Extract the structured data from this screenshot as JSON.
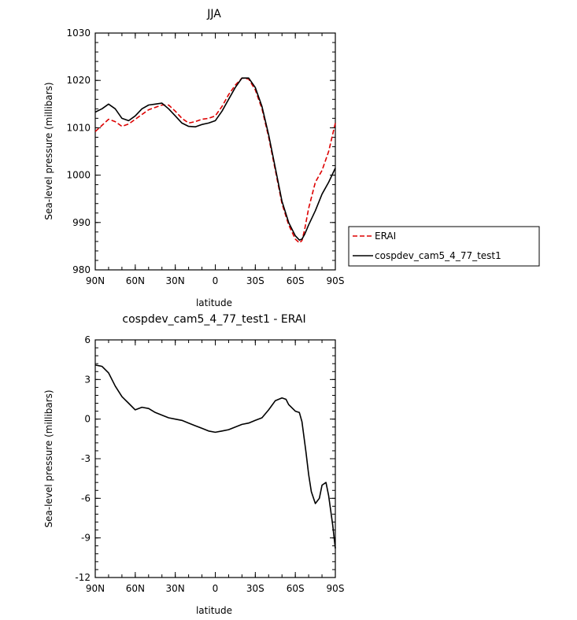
{
  "chart_data": [
    {
      "type": "line",
      "title": "JJA",
      "xlabel": "latitude",
      "ylabel": "Sea-level pressure (millibars)",
      "xlim": [
        90,
        -90
      ],
      "ylim": [
        980,
        1030
      ],
      "x_ticks": [
        90,
        60,
        30,
        0,
        -30,
        -60,
        -90
      ],
      "x_tick_labels": [
        "90N",
        "60N",
        "30N",
        "0",
        "30S",
        "60S",
        "90S"
      ],
      "y_ticks": [
        980,
        990,
        1000,
        1010,
        1020,
        1030
      ],
      "y_tick_labels": [
        "980",
        "990",
        "1000",
        "1010",
        "1020",
        "1030"
      ],
      "legend_position": "right",
      "series": [
        {
          "name": "ERAI",
          "color": "#dd0000",
          "dash": "dashed",
          "x": [
            90,
            85,
            80,
            75,
            70,
            65,
            60,
            55,
            50,
            45,
            40,
            35,
            30,
            25,
            20,
            15,
            10,
            5,
            0,
            -5,
            -10,
            -15,
            -20,
            -25,
            -30,
            -35,
            -40,
            -45,
            -50,
            -55,
            -60,
            -63,
            -65,
            -67,
            -70,
            -75,
            -80,
            -85,
            -90
          ],
          "y": [
            1009.2,
            1010.5,
            1011.8,
            1011.3,
            1010.3,
            1010.8,
            1011.8,
            1012.8,
            1013.8,
            1014.3,
            1014.8,
            1014.8,
            1013.5,
            1012.0,
            1011.0,
            1011.3,
            1011.8,
            1012.0,
            1012.5,
            1014.5,
            1017.0,
            1019.0,
            1020.5,
            1020.3,
            1018.0,
            1014.0,
            1008.0,
            1001.0,
            994.0,
            989.5,
            986.5,
            985.7,
            986.2,
            988.5,
            993.0,
            998.5,
            1001.0,
            1005.0,
            1011.0
          ]
        },
        {
          "name": "cospdev_cam5_4_77_test1",
          "color": "#000000",
          "dash": "solid",
          "x": [
            90,
            85,
            80,
            75,
            70,
            65,
            60,
            55,
            50,
            45,
            40,
            35,
            30,
            25,
            20,
            15,
            10,
            5,
            0,
            -5,
            -10,
            -15,
            -20,
            -25,
            -30,
            -35,
            -40,
            -45,
            -50,
            -55,
            -60,
            -63,
            -65,
            -67,
            -70,
            -75,
            -80,
            -85,
            -90
          ],
          "y": [
            1013.3,
            1014.0,
            1015.0,
            1014.0,
            1012.0,
            1011.5,
            1012.5,
            1014.0,
            1014.8,
            1015.0,
            1015.2,
            1014.0,
            1012.5,
            1011.0,
            1010.3,
            1010.2,
            1010.7,
            1011.0,
            1011.5,
            1013.5,
            1016.0,
            1018.5,
            1020.5,
            1020.5,
            1018.5,
            1014.5,
            1008.5,
            1001.5,
            994.5,
            990.0,
            987.2,
            986.3,
            986.5,
            987.5,
            989.5,
            992.5,
            996.0,
            998.5,
            1001.5
          ]
        }
      ]
    },
    {
      "type": "line",
      "title": "cospdev_cam5_4_77_test1 - ERAI",
      "xlabel": "latitude",
      "ylabel": "Sea-level pressure (millibars)",
      "xlim": [
        90,
        -90
      ],
      "ylim": [
        -12,
        6
      ],
      "x_ticks": [
        90,
        60,
        30,
        0,
        -30,
        -60,
        -90
      ],
      "x_tick_labels": [
        "90N",
        "60N",
        "30N",
        "0",
        "30S",
        "60S",
        "90S"
      ],
      "y_ticks": [
        -12,
        -9,
        -6,
        -3,
        0,
        3,
        6
      ],
      "y_tick_labels": [
        "-12",
        "-9",
        "-6",
        "-3",
        "0",
        "3",
        "6"
      ],
      "series": [
        {
          "color": "#000000",
          "dash": "solid",
          "x": [
            90,
            85,
            80,
            75,
            70,
            65,
            60,
            55,
            50,
            45,
            40,
            35,
            30,
            25,
            20,
            15,
            10,
            5,
            0,
            -5,
            -10,
            -15,
            -20,
            -25,
            -30,
            -35,
            -40,
            -45,
            -50,
            -53,
            -55,
            -60,
            -63,
            -65,
            -68,
            -70,
            -72,
            -75,
            -78,
            -80,
            -83,
            -85,
            -88,
            -90
          ],
          "y": [
            4.1,
            4.0,
            3.5,
            2.5,
            1.7,
            1.2,
            0.7,
            0.9,
            0.8,
            0.5,
            0.3,
            0.1,
            0.0,
            -0.1,
            -0.3,
            -0.5,
            -0.7,
            -0.9,
            -1.0,
            -0.9,
            -0.8,
            -0.6,
            -0.4,
            -0.3,
            -0.1,
            0.1,
            0.7,
            1.4,
            1.6,
            1.5,
            1.1,
            0.6,
            0.5,
            -0.2,
            -2.5,
            -4.2,
            -5.5,
            -6.4,
            -6.0,
            -5.0,
            -4.8,
            -5.8,
            -8.0,
            -9.8
          ]
        }
      ]
    }
  ]
}
